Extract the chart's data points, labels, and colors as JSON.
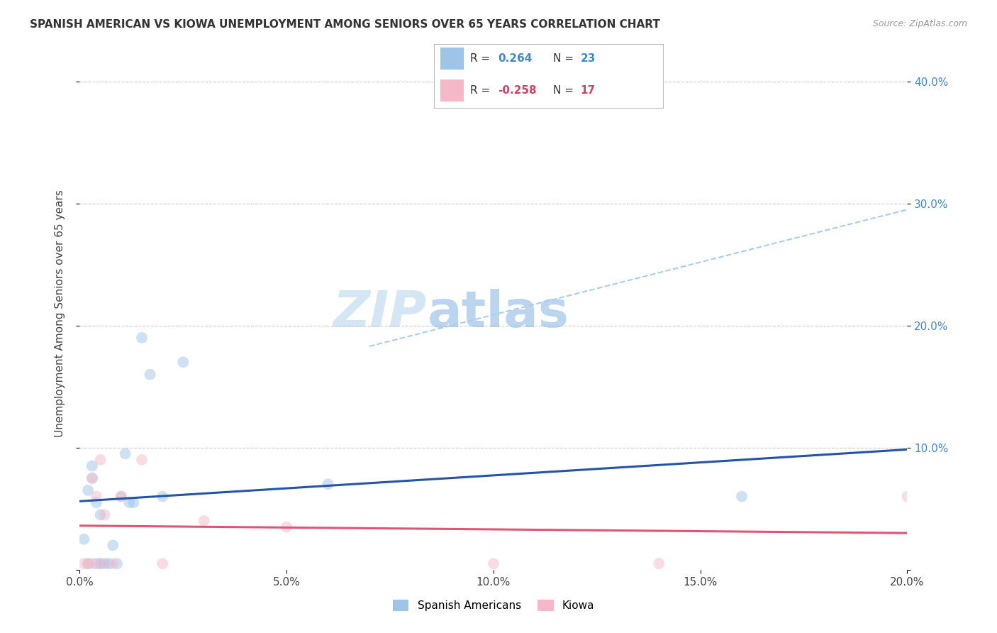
{
  "title": "SPANISH AMERICAN VS KIOWA UNEMPLOYMENT AMONG SENIORS OVER 65 YEARS CORRELATION CHART",
  "source": "Source: ZipAtlas.com",
  "ylabel": "Unemployment Among Seniors over 65 years",
  "xlim": [
    0.0,
    0.2
  ],
  "ylim": [
    0.0,
    0.42
  ],
  "xticks": [
    0.0,
    0.05,
    0.1,
    0.15,
    0.2
  ],
  "xtick_labels": [
    "0.0%",
    "5.0%",
    "10.0%",
    "15.0%",
    "20.0%"
  ],
  "yticks": [
    0.0,
    0.1,
    0.2,
    0.3,
    0.4
  ],
  "ytick_labels": [
    "",
    "10.0%",
    "20.0%",
    "30.0%",
    "40.0%"
  ],
  "grid_color": "#cccccc",
  "background_color": "#ffffff",
  "watermark_zip": "ZIP",
  "watermark_atlas": "atlas",
  "blue_points_x": [
    0.001,
    0.002,
    0.002,
    0.003,
    0.003,
    0.004,
    0.004,
    0.005,
    0.005,
    0.006,
    0.007,
    0.008,
    0.009,
    0.01,
    0.011,
    0.012,
    0.013,
    0.015,
    0.017,
    0.02,
    0.025,
    0.06,
    0.16
  ],
  "blue_points_y": [
    0.025,
    0.005,
    0.065,
    0.075,
    0.085,
    0.055,
    0.005,
    0.005,
    0.045,
    0.005,
    0.005,
    0.02,
    0.005,
    0.06,
    0.095,
    0.055,
    0.055,
    0.19,
    0.16,
    0.06,
    0.17,
    0.07,
    0.06
  ],
  "pink_points_x": [
    0.001,
    0.002,
    0.003,
    0.003,
    0.004,
    0.005,
    0.005,
    0.006,
    0.008,
    0.01,
    0.015,
    0.02,
    0.03,
    0.05,
    0.1,
    0.14,
    0.2
  ],
  "pink_points_y": [
    0.005,
    0.005,
    0.005,
    0.075,
    0.06,
    0.005,
    0.09,
    0.045,
    0.005,
    0.06,
    0.09,
    0.005,
    0.04,
    0.035,
    0.005,
    0.005,
    0.06
  ],
  "blue_color": "#9ec4e8",
  "pink_color": "#f5b8c8",
  "blue_line_color": "#2255aa",
  "pink_line_color": "#e05575",
  "dashed_line_color": "#aaccee",
  "legend_blue_r": "0.264",
  "legend_blue_n": "23",
  "legend_pink_r": "-0.258",
  "legend_pink_n": "17",
  "legend_r_color": "#333333",
  "legend_blue_val_color": "#4488cc",
  "legend_pink_val_color": "#cc4466",
  "marker_size": 130,
  "marker_alpha": 0.5,
  "line_width": 2.2
}
